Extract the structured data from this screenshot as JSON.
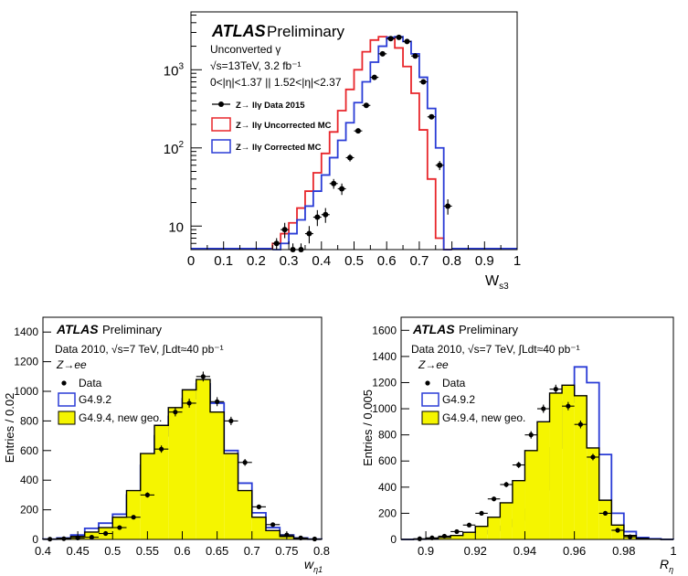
{
  "chart_data": [
    {
      "type": "step",
      "title": "ATLAS Preliminary",
      "atlas_label": "ATLAS",
      "prelim_label": "Preliminary",
      "annotations": [
        "Unconverted γ",
        "√s=13TeV, 3.2 fb⁻¹",
        "0<|η|<1.37 || 1.52<|η|<2.37"
      ],
      "xlabel": "W_s3",
      "xlabel_main": "W",
      "xlabel_sub": "s3",
      "ylabel": "",
      "yscale": "log",
      "xlim": [
        0,
        1
      ],
      "ylim": [
        5,
        5500
      ],
      "x_ticks": [
        "0",
        "0.1",
        "0.2",
        "0.3",
        "0.4",
        "0.5",
        "0.6",
        "0.7",
        "0.8",
        "0.9",
        "1"
      ],
      "y_ticks": [
        {
          "value": 10,
          "base": "10",
          "exp": ""
        },
        {
          "value": 100,
          "base": "10",
          "exp": "2"
        },
        {
          "value": 1000,
          "base": "10",
          "exp": "3"
        }
      ],
      "legend": [
        {
          "name": "Z→ llγ Data 2015",
          "style": "marker",
          "color": "#000000"
        },
        {
          "name": "Z→ llγ Uncorrected MC",
          "style": "box",
          "color": "#e8262b"
        },
        {
          "name": "Z→ llγ Corrected MC",
          "style": "box",
          "color": "#2a3cd6"
        }
      ],
      "bin_edges": [
        0.25,
        0.275,
        0.3,
        0.325,
        0.35,
        0.375,
        0.4,
        0.425,
        0.45,
        0.475,
        0.5,
        0.525,
        0.55,
        0.575,
        0.6,
        0.625,
        0.65,
        0.675,
        0.7,
        0.725,
        0.75,
        0.775,
        0.8
      ],
      "series": [
        {
          "name": "Uncorrected MC",
          "color": "#e8262b",
          "values": [
            6,
            8,
            11,
            17,
            28,
            48,
            85,
            160,
            300,
            560,
            1000,
            1700,
            2400,
            2650,
            2500,
            1900,
            1100,
            500,
            170,
            40,
            7,
            1
          ]
        },
        {
          "name": "Corrected MC",
          "color": "#2a3cd6",
          "values": [
            5,
            6,
            8,
            12,
            18,
            28,
            45,
            75,
            125,
            210,
            380,
            700,
            1250,
            2000,
            2600,
            2650,
            2300,
            1600,
            800,
            320,
            100,
            1
          ]
        }
      ],
      "data_points": [
        {
          "x": 0.2625,
          "y": 6,
          "yerr": 1
        },
        {
          "x": 0.2875,
          "y": 9,
          "yerr": 2
        },
        {
          "x": 0.3125,
          "y": 5,
          "yerr": 1
        },
        {
          "x": 0.3375,
          "y": 5,
          "yerr": 1
        },
        {
          "x": 0.3625,
          "y": 8,
          "yerr": 2
        },
        {
          "x": 0.3875,
          "y": 13,
          "yerr": 3
        },
        {
          "x": 0.4125,
          "y": 14,
          "yerr": 3
        },
        {
          "x": 0.4375,
          "y": 35,
          "yerr": 5
        },
        {
          "x": 0.4625,
          "y": 30,
          "yerr": 5
        },
        {
          "x": 0.4875,
          "y": 75,
          "yerr": 8
        },
        {
          "x": 0.5125,
          "y": 165,
          "yerr": 12
        },
        {
          "x": 0.5375,
          "y": 350,
          "yerr": 18
        },
        {
          "x": 0.5625,
          "y": 800,
          "yerr": 28
        },
        {
          "x": 0.5875,
          "y": 1600,
          "yerr": 40
        },
        {
          "x": 0.6125,
          "y": 2500,
          "yerr": 50
        },
        {
          "x": 0.6375,
          "y": 2600,
          "yerr": 50
        },
        {
          "x": 0.6625,
          "y": 2300,
          "yerr": 48
        },
        {
          "x": 0.6875,
          "y": 1500,
          "yerr": 38
        },
        {
          "x": 0.7125,
          "y": 700,
          "yerr": 26
        },
        {
          "x": 0.7375,
          "y": 250,
          "yerr": 16
        },
        {
          "x": 0.7625,
          "y": 60,
          "yerr": 8
        },
        {
          "x": 0.7875,
          "y": 18,
          "yerr": 4
        }
      ]
    },
    {
      "type": "step",
      "title": "ATLAS Preliminary",
      "atlas_label": "ATLAS",
      "prelim_label": "Preliminary",
      "annotations": [
        "Data 2010,  √s=7 TeV,  ∫Ldt≈40 pb⁻¹",
        "Z→ee"
      ],
      "xlabel": "w_η1",
      "xlabel_main": "w",
      "xlabel_sub": "η1",
      "ylabel": "Entries / 0.02",
      "yscale": "linear",
      "xlim": [
        0.4,
        0.8
      ],
      "ylim": [
        0,
        1500
      ],
      "x_ticks": [
        "0.4",
        "0.45",
        "0.5",
        "0.55",
        "0.6",
        "0.65",
        "0.7",
        "0.75",
        "0.8"
      ],
      "y_ticks": [
        "0",
        "200",
        "400",
        "600",
        "800",
        "1000",
        "1200",
        "1400"
      ],
      "legend": [
        {
          "name": "Data",
          "style": "marker",
          "color": "#000000"
        },
        {
          "name": "G4.9.2",
          "style": "box",
          "color": "#2a3cd6"
        },
        {
          "name": "G4.9.4, new geo.",
          "style": "fill",
          "color": "#f5f500"
        }
      ],
      "bin_edges": [
        0.4,
        0.42,
        0.44,
        0.46,
        0.48,
        0.5,
        0.52,
        0.54,
        0.56,
        0.58,
        0.6,
        0.62,
        0.64,
        0.66,
        0.68,
        0.7,
        0.72,
        0.74,
        0.76,
        0.78,
        0.8
      ],
      "series": [
        {
          "name": "G4.9.2",
          "color": "#2a3cd6",
          "values": [
            2,
            10,
            30,
            75,
            110,
            170,
            300,
            500,
            700,
            830,
            950,
            1050,
            920,
            600,
            380,
            180,
            80,
            30,
            10,
            2
          ]
        },
        {
          "name": "G4.9.4, new geo.",
          "color": "#f5f500",
          "values": [
            2,
            8,
            20,
            50,
            80,
            150,
            330,
            580,
            770,
            890,
            1010,
            1080,
            860,
            580,
            330,
            150,
            60,
            20,
            5,
            1
          ]
        }
      ],
      "data_points": [
        {
          "x": 0.41,
          "y": 2
        },
        {
          "x": 0.43,
          "y": 5
        },
        {
          "x": 0.45,
          "y": 10
        },
        {
          "x": 0.47,
          "y": 15
        },
        {
          "x": 0.49,
          "y": 40
        },
        {
          "x": 0.51,
          "y": 80
        },
        {
          "x": 0.53,
          "y": 150
        },
        {
          "x": 0.55,
          "y": 300
        },
        {
          "x": 0.57,
          "y": 610
        },
        {
          "x": 0.59,
          "y": 860
        },
        {
          "x": 0.61,
          "y": 920
        },
        {
          "x": 0.63,
          "y": 1100
        },
        {
          "x": 0.65,
          "y": 930
        },
        {
          "x": 0.67,
          "y": 800
        },
        {
          "x": 0.69,
          "y": 520
        },
        {
          "x": 0.71,
          "y": 220
        },
        {
          "x": 0.73,
          "y": 100
        },
        {
          "x": 0.75,
          "y": 30
        },
        {
          "x": 0.77,
          "y": 10
        },
        {
          "x": 0.79,
          "y": 3
        }
      ]
    },
    {
      "type": "step",
      "title": "ATLAS Preliminary",
      "atlas_label": "ATLAS",
      "prelim_label": "Preliminary",
      "annotations": [
        "Data 2010,  √s=7 TeV,  ∫Ldt≈40 pb⁻¹",
        "Z→ee"
      ],
      "xlabel": "R_η",
      "xlabel_main": "R",
      "xlabel_sub": "η",
      "ylabel": "Entries / 0.005",
      "yscale": "linear",
      "xlim": [
        0.89,
        1.0
      ],
      "ylim": [
        0,
        1700
      ],
      "x_ticks": [
        "0.9",
        "0.92",
        "0.94",
        "0.96",
        "0.98",
        "1"
      ],
      "y_ticks": [
        "0",
        "200",
        "400",
        "600",
        "800",
        "1000",
        "1200",
        "1400",
        "1600"
      ],
      "legend": [
        {
          "name": "Data",
          "style": "marker",
          "color": "#000000"
        },
        {
          "name": "G4.9.2",
          "style": "box",
          "color": "#2a3cd6"
        },
        {
          "name": "G4.9.4, new geo.",
          "style": "fill",
          "color": "#f5f500"
        }
      ],
      "bin_edges": [
        0.89,
        0.895,
        0.9,
        0.905,
        0.91,
        0.915,
        0.92,
        0.925,
        0.93,
        0.935,
        0.94,
        0.945,
        0.95,
        0.955,
        0.96,
        0.965,
        0.97,
        0.975,
        0.98,
        0.985,
        0.99,
        0.995,
        1.0
      ],
      "series": [
        {
          "name": "G4.9.2",
          "color": "#2a3cd6",
          "values": [
            0,
            2,
            5,
            10,
            18,
            30,
            45,
            70,
            100,
            150,
            230,
            380,
            700,
            1050,
            1320,
            1200,
            650,
            200,
            60,
            15,
            5,
            1
          ]
        },
        {
          "name": "G4.9.4, new geo.",
          "color": "#f5f500",
          "values": [
            0,
            2,
            8,
            15,
            30,
            55,
            100,
            170,
            280,
            450,
            680,
            900,
            1120,
            1180,
            1100,
            700,
            300,
            110,
            30,
            8,
            2,
            0
          ]
        }
      ],
      "data_points": [
        {
          "x": 0.8975,
          "y": 5
        },
        {
          "x": 0.9025,
          "y": 12
        },
        {
          "x": 0.9075,
          "y": 25
        },
        {
          "x": 0.9125,
          "y": 60
        },
        {
          "x": 0.9175,
          "y": 110
        },
        {
          "x": 0.9225,
          "y": 200
        },
        {
          "x": 0.9275,
          "y": 310
        },
        {
          "x": 0.9325,
          "y": 420
        },
        {
          "x": 0.9375,
          "y": 570
        },
        {
          "x": 0.9425,
          "y": 800
        },
        {
          "x": 0.9475,
          "y": 1000
        },
        {
          "x": 0.9525,
          "y": 1150
        },
        {
          "x": 0.9575,
          "y": 1020
        },
        {
          "x": 0.9625,
          "y": 880
        },
        {
          "x": 0.9675,
          "y": 630
        },
        {
          "x": 0.9725,
          "y": 200
        },
        {
          "x": 0.9775,
          "y": 70
        },
        {
          "x": 0.9825,
          "y": 20
        }
      ]
    }
  ]
}
